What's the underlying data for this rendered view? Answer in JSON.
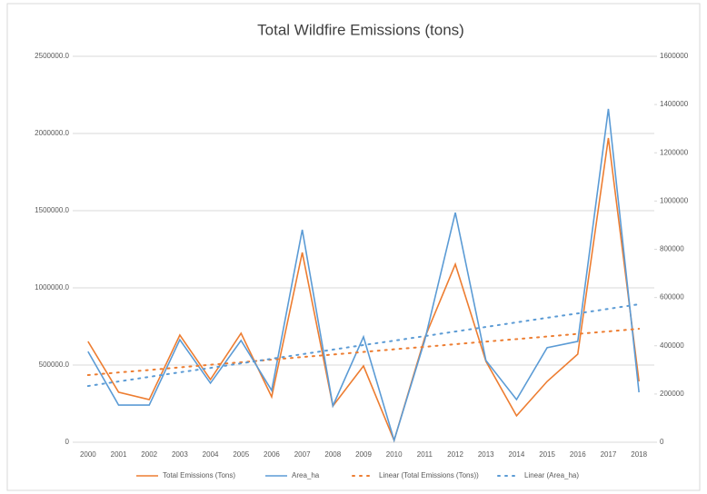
{
  "chart_data": {
    "type": "line",
    "title": "Total Wildfire Emissions (tons)",
    "categories": [
      "2000",
      "2001",
      "2002",
      "2003",
      "2004",
      "2005",
      "2006",
      "2007",
      "2008",
      "2009",
      "2010",
      "2011",
      "2012",
      "2013",
      "2014",
      "2015",
      "2016",
      "2017",
      "2018"
    ],
    "series": [
      {
        "name": "Total Emissions (Tons)",
        "color": "#ed7d31",
        "style": "solid",
        "values": [
          653000,
          324000,
          276000,
          694000,
          406000,
          706000,
          294000,
          1229000,
          235000,
          494000,
          12000,
          676000,
          1153000,
          524000,
          171000,
          394000,
          571000,
          1971000,
          394000
        ]
      },
      {
        "name": "Area_ha",
        "color": "#5b9bd5",
        "style": "solid",
        "axis": "y2",
        "values": [
          376000,
          154000,
          154000,
          425000,
          245000,
          422000,
          215000,
          881000,
          151000,
          437000,
          8000,
          422000,
          952000,
          339000,
          177000,
          392000,
          418000,
          1382000,
          207000
        ]
      },
      {
        "name": "Linear (Total Emissions (Tons))",
        "color": "#ed7d31",
        "style": "dotted",
        "values": [
          435000,
          452000,
          468000,
          485000,
          502000,
          518000,
          535000,
          552000,
          568000,
          585000,
          602000,
          618000,
          635000,
          652000,
          668000,
          685000,
          702000,
          718000,
          735000
        ]
      },
      {
        "name": "Linear (Area_ha)",
        "color": "#5b9bd5",
        "style": "dotted",
        "axis": "y2",
        "values": [
          233000,
          252000,
          271000,
          290000,
          308000,
          327000,
          346000,
          365000,
          384000,
          403000,
          421000,
          440000,
          459000,
          478000,
          497000,
          516000,
          534000,
          553000,
          572000
        ]
      }
    ],
    "ylim": [
      0,
      2500000
    ],
    "yticks": [
      0,
      {
        "value": 500000,
        "label": "500000.0"
      },
      {
        "value": 1000000,
        "label": "1000000.0"
      },
      {
        "value": 1500000,
        "label": "1500000.0"
      },
      {
        "value": 2000000,
        "label": "2000000.0"
      },
      {
        "value": 2500000,
        "label": "2500000.0"
      }
    ],
    "y2lim": [
      0,
      1600000
    ],
    "y2ticks": [
      0,
      200000,
      400000,
      600000,
      800000,
      1000000,
      1200000,
      1400000,
      1600000
    ],
    "grid": true,
    "legend": "bottom"
  }
}
